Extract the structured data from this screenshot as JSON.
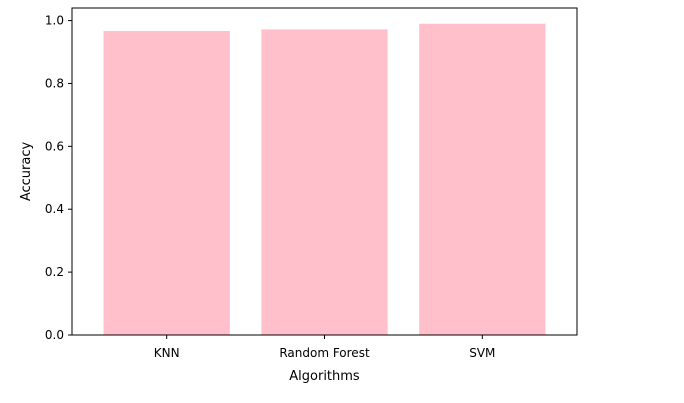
{
  "chart_data": {
    "type": "bar",
    "categories": [
      "KNN",
      "Random Forest",
      "SVM"
    ],
    "values": [
      0.967,
      0.972,
      0.99
    ],
    "title": "",
    "xlabel": "Algorithms",
    "ylabel": "Accuracy",
    "ylim": [
      0,
      1.04
    ],
    "yticks": [
      0.0,
      0.2,
      0.4,
      0.6,
      0.8,
      1.0
    ],
    "ytick_labels": [
      "0.0",
      "0.2",
      "0.4",
      "0.6",
      "0.8",
      "1.0"
    ],
    "bar_color": "#ffc0cb",
    "grid": false,
    "legend": "none"
  }
}
